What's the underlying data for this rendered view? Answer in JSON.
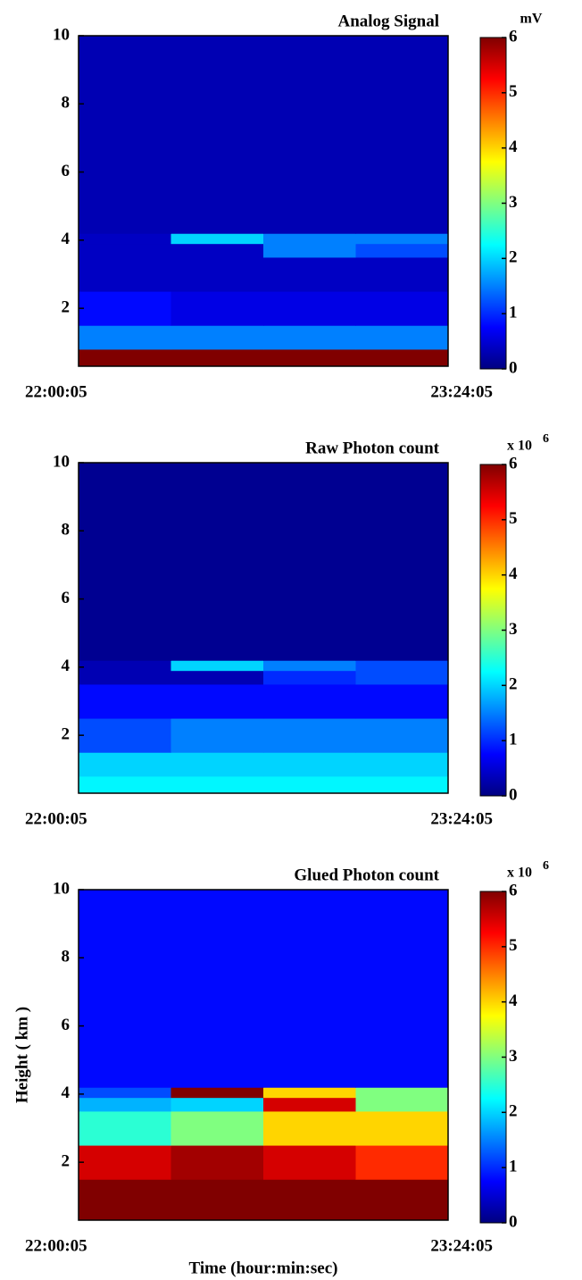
{
  "chart_data": [
    {
      "type": "heatmap",
      "title": "Analog Signal",
      "colorbar_label": "mV",
      "colormap": "jet",
      "xtick_labels": [
        "22:00:05",
        "23:24:05"
      ],
      "ylim": [
        0.3,
        10
      ],
      "yticks": [
        2,
        4,
        6,
        8,
        10
      ],
      "ybins": [
        0.3,
        0.8,
        1.5,
        2.5,
        3.5,
        3.9,
        4.2,
        10
      ],
      "z": [
        [
          6,
          6,
          6,
          6
        ],
        [
          1.5,
          1.5,
          1.5,
          1.5
        ],
        [
          0.8,
          0.6,
          0.6,
          0.6
        ],
        [
          0.4,
          0.4,
          0.4,
          0.4
        ],
        [
          0.4,
          0.4,
          1.5,
          1.2
        ],
        [
          0.4,
          2,
          1.5,
          1.5
        ],
        [
          0.3,
          0.3,
          0.3,
          0.3
        ]
      ],
      "clim": [
        0,
        6
      ],
      "cticks": [
        0,
        1,
        2,
        3,
        4,
        5,
        6
      ]
    },
    {
      "type": "heatmap",
      "title": "Raw Photon count",
      "colorbar_label": "x 10",
      "colorbar_exponent": "6",
      "colormap": "jet",
      "xtick_labels": [
        "22:00:05",
        "23:24:05"
      ],
      "ylim": [
        0.3,
        10
      ],
      "yticks": [
        2,
        4,
        6,
        8,
        10
      ],
      "ybins": [
        0.3,
        0.8,
        1.5,
        2.5,
        3.5,
        3.9,
        4.2,
        10
      ],
      "z": [
        [
          2.2,
          2.2,
          2.2,
          2.2
        ],
        [
          2,
          2,
          2,
          2
        ],
        [
          1.2,
          1.5,
          1.5,
          1.5
        ],
        [
          0.8,
          0.8,
          0.8,
          0.8
        ],
        [
          0.3,
          0.3,
          1,
          1.2
        ],
        [
          0.3,
          2,
          1.5,
          1.2
        ],
        [
          0.1,
          0.1,
          0.1,
          0.1
        ]
      ],
      "clim": [
        0,
        6
      ],
      "cticks": [
        0,
        1,
        2,
        3,
        4,
        5,
        6
      ]
    },
    {
      "type": "heatmap",
      "title": "Glued Photon count",
      "colorbar_label": "x 10",
      "colorbar_exponent": "6",
      "colormap": "jet",
      "xtick_labels": [
        "22:00:05",
        "23:24:05"
      ],
      "xlabel": "Time (hour:min:sec)",
      "ylabel": "Height ( km )",
      "ylim": [
        0.3,
        10
      ],
      "yticks": [
        2,
        4,
        6,
        8,
        10
      ],
      "ybins": [
        0.3,
        0.8,
        1.5,
        2.5,
        3.5,
        3.9,
        4.2,
        10
      ],
      "z": [
        [
          6,
          6,
          6,
          6
        ],
        [
          6,
          6,
          6,
          6
        ],
        [
          5.5,
          5.8,
          5.5,
          5
        ],
        [
          2.5,
          3,
          4,
          4
        ],
        [
          1.8,
          2,
          5.5,
          3
        ],
        [
          1.2,
          6,
          4,
          3
        ],
        [
          0.8,
          0.8,
          0.8,
          0.8
        ]
      ],
      "clim": [
        0,
        6
      ],
      "cticks": [
        0,
        1,
        2,
        3,
        4,
        5,
        6
      ]
    }
  ]
}
